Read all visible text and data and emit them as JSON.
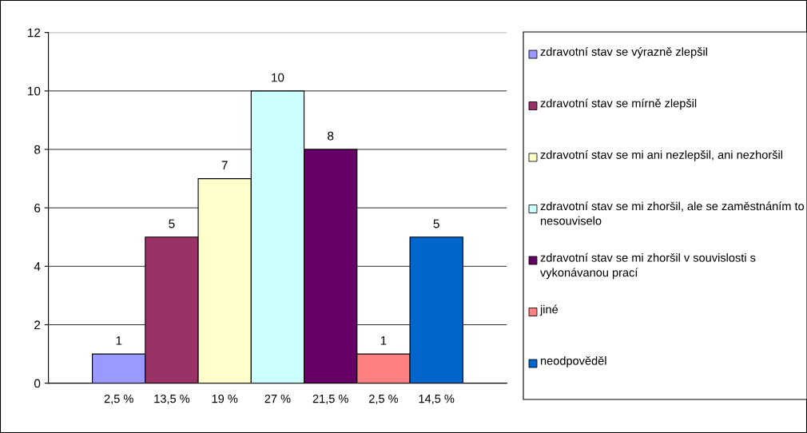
{
  "chart_data": {
    "type": "bar",
    "categories": [
      "2,5 %",
      "13,5 %",
      "19 %",
      "27 %",
      "21,5 %",
      "2,5 %",
      "14,5 %"
    ],
    "series": [
      {
        "name": "zdravotní stav se výrazně zlepšil",
        "color": "#9999ff",
        "values": [
          1,
          null,
          null,
          null,
          null,
          null,
          null
        ]
      },
      {
        "name": "zdravotní stav se mírně zlepšil",
        "color": "#993366",
        "values": [
          null,
          5,
          null,
          null,
          null,
          null,
          null
        ]
      },
      {
        "name": "zdravotní stav se mi ani nezlepšil, ani nezhoršil",
        "color": "#ffffcc",
        "values": [
          null,
          null,
          7,
          null,
          null,
          null,
          null
        ]
      },
      {
        "name": "zdravotní stav se mi zhoršil, ale se zaměstnáním to nesouviselo",
        "color": "#ccffff",
        "values": [
          null,
          null,
          null,
          10,
          null,
          null,
          null
        ]
      },
      {
        "name": "zdravotní stav se mi zhoršil v souvislosti s vykonávanou prací",
        "color": "#660066",
        "values": [
          null,
          null,
          null,
          null,
          8,
          null,
          null
        ]
      },
      {
        "name": "jiné",
        "color": "#ff8080",
        "values": [
          null,
          null,
          null,
          null,
          null,
          1,
          null
        ]
      },
      {
        "name": "neodpověděl",
        "color": "#0066cc",
        "values": [
          null,
          null,
          null,
          null,
          null,
          null,
          5
        ]
      }
    ],
    "ylim": [
      0,
      12
    ],
    "yticks": [
      0,
      2,
      4,
      6,
      8,
      10,
      12
    ],
    "grid": "y",
    "legend": "right",
    "data_labels": true
  }
}
